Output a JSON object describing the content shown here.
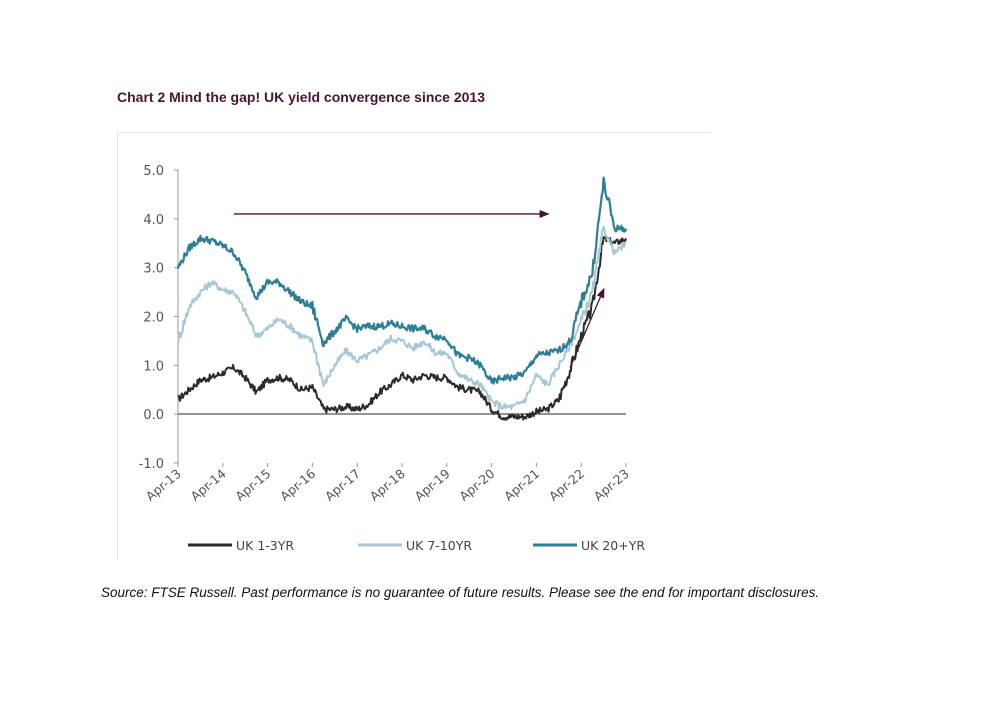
{
  "title": "Chart 2 Mind the gap! UK yield convergence since 2013",
  "source": "Source: FTSE Russell. Past performance is no guarantee of future results.  Please see the end for important disclosures.",
  "chart_data": {
    "type": "line",
    "title": "Chart 2 Mind the gap! UK yield convergence since 2013",
    "xlabel": "",
    "ylabel": "",
    "ylim": [
      -1.0,
      5.0
    ],
    "yticks": [
      "5.0",
      "4.0",
      "3.0",
      "2.0",
      "1.0",
      "0.0",
      "-1.0"
    ],
    "xticks": [
      "Apr-13",
      "Apr-14",
      "Apr-15",
      "Apr-16",
      "Apr-17",
      "Apr-18",
      "Apr-19",
      "Apr-20",
      "Apr-21",
      "Apr-22",
      "Apr-23"
    ],
    "x": [
      "Apr-13",
      "Jul-13",
      "Oct-13",
      "Jan-14",
      "Apr-14",
      "Jul-14",
      "Oct-14",
      "Jan-15",
      "Apr-15",
      "Jul-15",
      "Oct-15",
      "Jan-16",
      "Apr-16",
      "Jul-16",
      "Oct-16",
      "Jan-17",
      "Apr-17",
      "Jul-17",
      "Oct-17",
      "Jan-18",
      "Apr-18",
      "Jul-18",
      "Oct-18",
      "Jan-19",
      "Apr-19",
      "Jul-19",
      "Oct-19",
      "Jan-20",
      "Apr-20",
      "Jul-20",
      "Oct-20",
      "Jan-21",
      "Apr-21",
      "Jul-21",
      "Oct-21",
      "Jan-22",
      "Apr-22",
      "Jul-22",
      "Oct-22",
      "Jan-23",
      "Apr-23"
    ],
    "series": [
      {
        "name": "UK 1-3YR",
        "color": "#2b2b2b",
        "values": [
          0.3,
          0.5,
          0.7,
          0.75,
          0.85,
          0.95,
          0.75,
          0.45,
          0.7,
          0.75,
          0.7,
          0.5,
          0.55,
          0.1,
          0.1,
          0.15,
          0.1,
          0.2,
          0.45,
          0.6,
          0.8,
          0.7,
          0.8,
          0.75,
          0.75,
          0.55,
          0.5,
          0.45,
          0.1,
          -0.05,
          -0.05,
          -0.05,
          0.05,
          0.1,
          0.3,
          0.9,
          1.6,
          2.2,
          3.6,
          3.5,
          3.6
        ]
      },
      {
        "name": "UK 7-10YR",
        "color": "#a9c6d6",
        "values": [
          1.5,
          2.2,
          2.5,
          2.7,
          2.55,
          2.5,
          2.1,
          1.6,
          1.75,
          1.95,
          1.8,
          1.6,
          1.5,
          0.6,
          1.0,
          1.3,
          1.1,
          1.2,
          1.35,
          1.55,
          1.5,
          1.35,
          1.5,
          1.25,
          1.25,
          0.85,
          0.7,
          0.6,
          0.25,
          0.15,
          0.15,
          0.3,
          0.8,
          0.6,
          1.0,
          1.4,
          1.9,
          2.5,
          3.8,
          3.3,
          3.5
        ]
      },
      {
        "name": "UK 20+YR",
        "color": "#2e7e96",
        "values": [
          3.0,
          3.4,
          3.6,
          3.55,
          3.45,
          3.3,
          2.9,
          2.4,
          2.7,
          2.7,
          2.5,
          2.3,
          2.2,
          1.45,
          1.7,
          1.95,
          1.75,
          1.8,
          1.8,
          1.85,
          1.8,
          1.75,
          1.75,
          1.6,
          1.55,
          1.2,
          1.15,
          1.0,
          0.65,
          0.75,
          0.75,
          0.85,
          1.2,
          1.25,
          1.3,
          1.5,
          2.3,
          2.9,
          4.75,
          3.8,
          3.8
        ]
      }
    ],
    "annotations": [
      {
        "type": "arrow",
        "from": {
          "x": "Jul-14",
          "y": 4.1
        },
        "to": {
          "x": "Jul-21",
          "y": 4.1
        },
        "color": "#4a1530"
      },
      {
        "type": "arrow",
        "from": {
          "x": "Jan-22",
          "y": 0.95
        },
        "to": {
          "x": "Oct-22",
          "y": 2.55
        },
        "color": "#4a1530"
      }
    ],
    "grid": false,
    "legend_position": "bottom"
  }
}
